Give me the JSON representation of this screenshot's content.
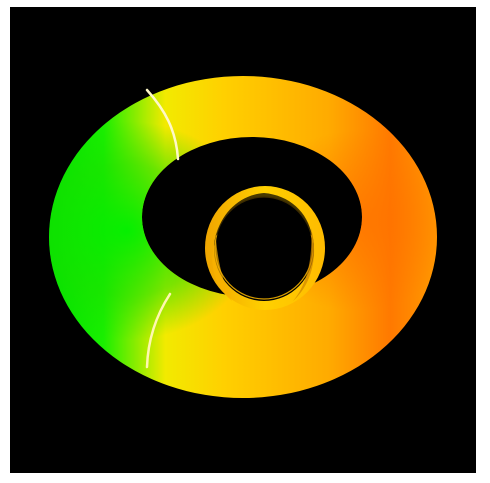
{
  "image": {
    "subject": "colored-ring-render",
    "colors": {
      "background": "#000000",
      "frame": "#ffffff",
      "green": "#00e100",
      "yellow": "#ffd700",
      "orange": "#ff8000",
      "highlight": "#fff7a8"
    }
  }
}
